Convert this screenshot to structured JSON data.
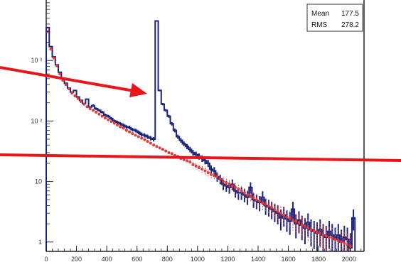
{
  "chart_data": {
    "type": "line",
    "x_ticks": [
      0,
      200,
      400,
      600,
      800,
      1000,
      1200,
      1400,
      1600,
      1800,
      2000
    ],
    "x_tick_labels": [
      "0",
      "200",
      "400",
      "600",
      "800",
      "1000",
      "1200",
      "1400",
      "1600",
      "1800",
      "2000"
    ],
    "y_scale": "log",
    "y_ticks": [
      {
        "value": 1,
        "label": "1"
      },
      {
        "value": 10,
        "label": "10"
      },
      {
        "value": 100,
        "label": "10 ²"
      },
      {
        "value": 1000,
        "label": "10 ³"
      }
    ],
    "xlim": [
      0,
      2100
    ],
    "ylim": [
      0.7,
      10000
    ],
    "grid": false,
    "stats_box": {
      "mean_label": "Mean",
      "mean_value": "177.5",
      "rms_label": "RMS",
      "rms_value": "278.2"
    },
    "series": [
      {
        "style": "histogram",
        "color": "#1a237e",
        "x": [
          0,
          20,
          40,
          60,
          80,
          100,
          120,
          140,
          160,
          180,
          200,
          220,
          240,
          260,
          280,
          300,
          320,
          340,
          360,
          380,
          400,
          420,
          440,
          460,
          480,
          500,
          520,
          540,
          560,
          580,
          600,
          620,
          640,
          660,
          680,
          700,
          720,
          740,
          760,
          780,
          800,
          820,
          840,
          860,
          880,
          900,
          920,
          940,
          960,
          980,
          1000,
          1020,
          1040,
          1060,
          1080,
          1100,
          1120,
          1140,
          1160,
          1180,
          1200,
          1220,
          1240,
          1260,
          1280,
          1300,
          1320,
          1340,
          1360,
          1380,
          1400,
          1420,
          1440,
          1460,
          1480,
          1500,
          1520,
          1540,
          1560,
          1580,
          1600,
          1620,
          1640,
          1660,
          1680,
          1700,
          1720,
          1740,
          1760,
          1780,
          1800,
          1820,
          1840,
          1860,
          1880,
          1900,
          1920,
          1940,
          1960,
          1980,
          2000,
          2020
        ],
        "y": [
          3500,
          1700,
          1150,
          850,
          640,
          500,
          420,
          350,
          300,
          320,
          250,
          220,
          195,
          230,
          170,
          180,
          160,
          150,
          140,
          125,
          120,
          110,
          100,
          95,
          90,
          85,
          80,
          78,
          72,
          70,
          65,
          60,
          58,
          55,
          52,
          50,
          4500,
          320,
          190,
          150,
          120,
          90,
          70,
          55,
          48,
          42,
          38,
          34,
          30,
          28,
          26,
          24,
          22,
          20,
          16,
          15,
          12,
          11,
          9,
          8.5,
          8,
          9,
          7,
          6.5,
          6.5,
          6,
          5.5,
          8,
          5,
          4.8,
          4.5,
          5.5,
          4,
          3.8,
          3.5,
          3.2,
          3,
          2.5,
          2.8,
          2.4,
          2.2,
          3.5,
          2,
          2.3,
          1.9,
          1.7,
          2.1,
          1.6,
          1.5,
          1.4,
          1.6,
          1.3,
          1.2,
          1.5,
          1.3,
          1.1,
          1.3,
          1.0,
          1.2,
          1.1,
          0.8,
          2.5
        ]
      },
      {
        "style": "markers",
        "color": "#e53935",
        "x": [
          10,
          30,
          50,
          70,
          90,
          110,
          130,
          150,
          170,
          190,
          210,
          230,
          250,
          270,
          290,
          310,
          330,
          350,
          370,
          390,
          410,
          430,
          450,
          470,
          490,
          510,
          530,
          550,
          570,
          590,
          610,
          630,
          650,
          670,
          690,
          710,
          730,
          750,
          770,
          790,
          810,
          830,
          850,
          870,
          890,
          910,
          930,
          950,
          970,
          990,
          1010,
          1030,
          1050,
          1070,
          1090,
          1110,
          1130,
          1150,
          1170,
          1190,
          1210,
          1230,
          1250,
          1270,
          1290,
          1310,
          1330,
          1350,
          1370,
          1390,
          1410,
          1430,
          1450,
          1470,
          1490,
          1510,
          1530,
          1550,
          1570,
          1590,
          1610,
          1630,
          1650,
          1670,
          1690,
          1710,
          1730,
          1750,
          1770,
          1790,
          1810,
          1830,
          1850,
          1870,
          1890,
          1910,
          1930,
          1950,
          1970,
          1990,
          2010
        ],
        "y": [
          3000,
          1550,
          1100,
          820,
          600,
          470,
          400,
          340,
          290,
          260,
          235,
          210,
          190,
          172,
          160,
          150,
          140,
          130,
          120,
          112,
          105,
          98,
          92,
          86,
          80,
          76,
          70,
          66,
          62,
          58,
          55,
          52,
          49,
          46,
          43,
          40,
          38,
          36,
          34,
          32,
          30,
          29,
          27,
          26,
          24,
          23,
          22,
          21,
          19,
          18,
          17,
          16,
          15,
          14,
          13,
          12.5,
          12,
          11,
          10,
          9.5,
          9,
          8.5,
          8,
          7.5,
          7,
          6.5,
          6,
          5.7,
          5.4,
          5,
          4.7,
          4.4,
          4.2,
          3.9,
          3.7,
          3.4,
          3.2,
          3,
          2.8,
          2.6,
          2.5,
          2.3,
          2.2,
          2.1,
          1.9,
          1.8,
          1.7,
          1.6,
          1.5,
          1.45,
          1.4,
          1.3,
          1.25,
          1.2,
          1.15,
          1.1,
          1.05,
          1.0,
          0.95,
          0.9,
          0.85
        ]
      }
    ]
  },
  "overlay_colors": {
    "arrow": "#e8151b",
    "line": "#e8151b"
  }
}
